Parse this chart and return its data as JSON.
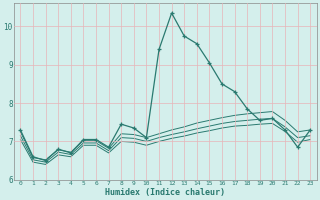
{
  "xlabel": "Humidex (Indice chaleur)",
  "bg_color": "#d4efec",
  "grid_color": "#e8b4b8",
  "line_color": "#2a7a70",
  "xlim": [
    -0.5,
    23.5
  ],
  "ylim": [
    6.0,
    10.6
  ],
  "yticks": [
    6,
    7,
    8,
    9,
    10
  ],
  "xticks": [
    0,
    1,
    2,
    3,
    4,
    5,
    6,
    7,
    8,
    9,
    10,
    11,
    12,
    13,
    14,
    15,
    16,
    17,
    18,
    19,
    20,
    21,
    22,
    23
  ],
  "series_main": [
    7.3,
    6.6,
    6.5,
    6.8,
    6.7,
    7.05,
    7.05,
    6.85,
    7.45,
    7.35,
    7.1,
    9.4,
    10.35,
    9.75,
    9.55,
    9.05,
    8.5,
    8.3,
    7.85,
    7.55,
    7.6,
    7.3,
    6.85,
    7.3
  ],
  "series_q75": [
    7.25,
    6.58,
    6.52,
    6.78,
    6.72,
    7.02,
    7.02,
    6.82,
    7.2,
    7.18,
    7.1,
    7.2,
    7.3,
    7.38,
    7.48,
    7.55,
    7.62,
    7.68,
    7.72,
    7.75,
    7.78,
    7.55,
    7.25,
    7.3
  ],
  "series_med": [
    7.15,
    6.52,
    6.46,
    6.72,
    6.66,
    6.96,
    6.96,
    6.76,
    7.1,
    7.08,
    7.0,
    7.1,
    7.18,
    7.25,
    7.33,
    7.4,
    7.47,
    7.52,
    7.55,
    7.58,
    7.6,
    7.38,
    7.1,
    7.15
  ],
  "series_q25": [
    7.05,
    6.46,
    6.4,
    6.65,
    6.6,
    6.9,
    6.9,
    6.7,
    7.0,
    6.98,
    6.9,
    7.0,
    7.08,
    7.14,
    7.22,
    7.28,
    7.35,
    7.4,
    7.42,
    7.45,
    7.47,
    7.26,
    6.98,
    7.05
  ]
}
